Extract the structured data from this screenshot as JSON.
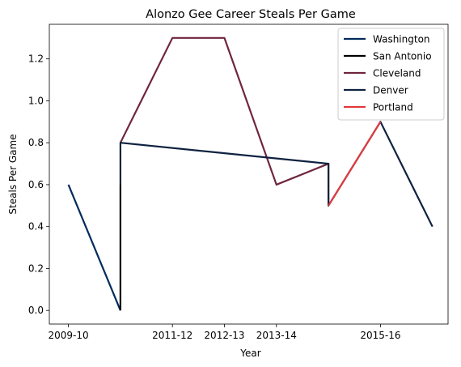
{
  "chart_data": {
    "type": "line",
    "title": "Alonzo Gee Career Steals Per Game",
    "xlabel": "Year",
    "ylabel": "Steals Per Game",
    "x_tick_labels": [
      "2009-10",
      "2011-12",
      "2012-13",
      "2013-14",
      "2015-16"
    ],
    "x_categories": [
      "2009-10",
      "2010-11",
      "2011-12",
      "2012-13",
      "2013-14",
      "2014-15",
      "2015-16",
      "2016-17"
    ],
    "y_ticks": [
      0.0,
      0.2,
      0.4,
      0.6,
      0.8,
      1.0,
      1.2
    ],
    "ylim": [
      -0.065,
      1.365
    ],
    "legend_position": "top-right",
    "grid": false,
    "series": [
      {
        "name": "Washington",
        "color": "#002B5C",
        "points": [
          [
            "2009-10",
            0.6
          ],
          [
            "2010-11",
            0.0
          ]
        ]
      },
      {
        "name": "San Antonio",
        "color": "#000000",
        "points": [
          [
            "2010-11",
            0.0
          ],
          [
            "2010-11",
            0.6
          ]
        ]
      },
      {
        "name": "Cleveland",
        "color": "#6F263D",
        "points": [
          [
            "2010-11",
            0.8
          ],
          [
            "2011-12",
            1.3
          ],
          [
            "2012-13",
            1.3
          ],
          [
            "2013-14",
            0.6
          ],
          [
            "2014-15",
            0.7
          ],
          [
            "2014-15",
            0.5
          ]
        ]
      },
      {
        "name": "Denver",
        "color": "#0E2240",
        "points": [
          [
            "2010-11",
            0.6
          ],
          [
            "2010-11",
            0.8
          ],
          [
            "2014-15",
            0.7
          ],
          [
            "2014-15",
            0.5
          ],
          [
            "2015-16",
            0.9
          ],
          [
            "2016-17",
            0.4
          ]
        ]
      },
      {
        "name": "Portland",
        "color": "#E03A3E",
        "points": [
          [
            "2014-15",
            0.5
          ],
          [
            "2015-16",
            0.9
          ]
        ]
      }
    ]
  }
}
